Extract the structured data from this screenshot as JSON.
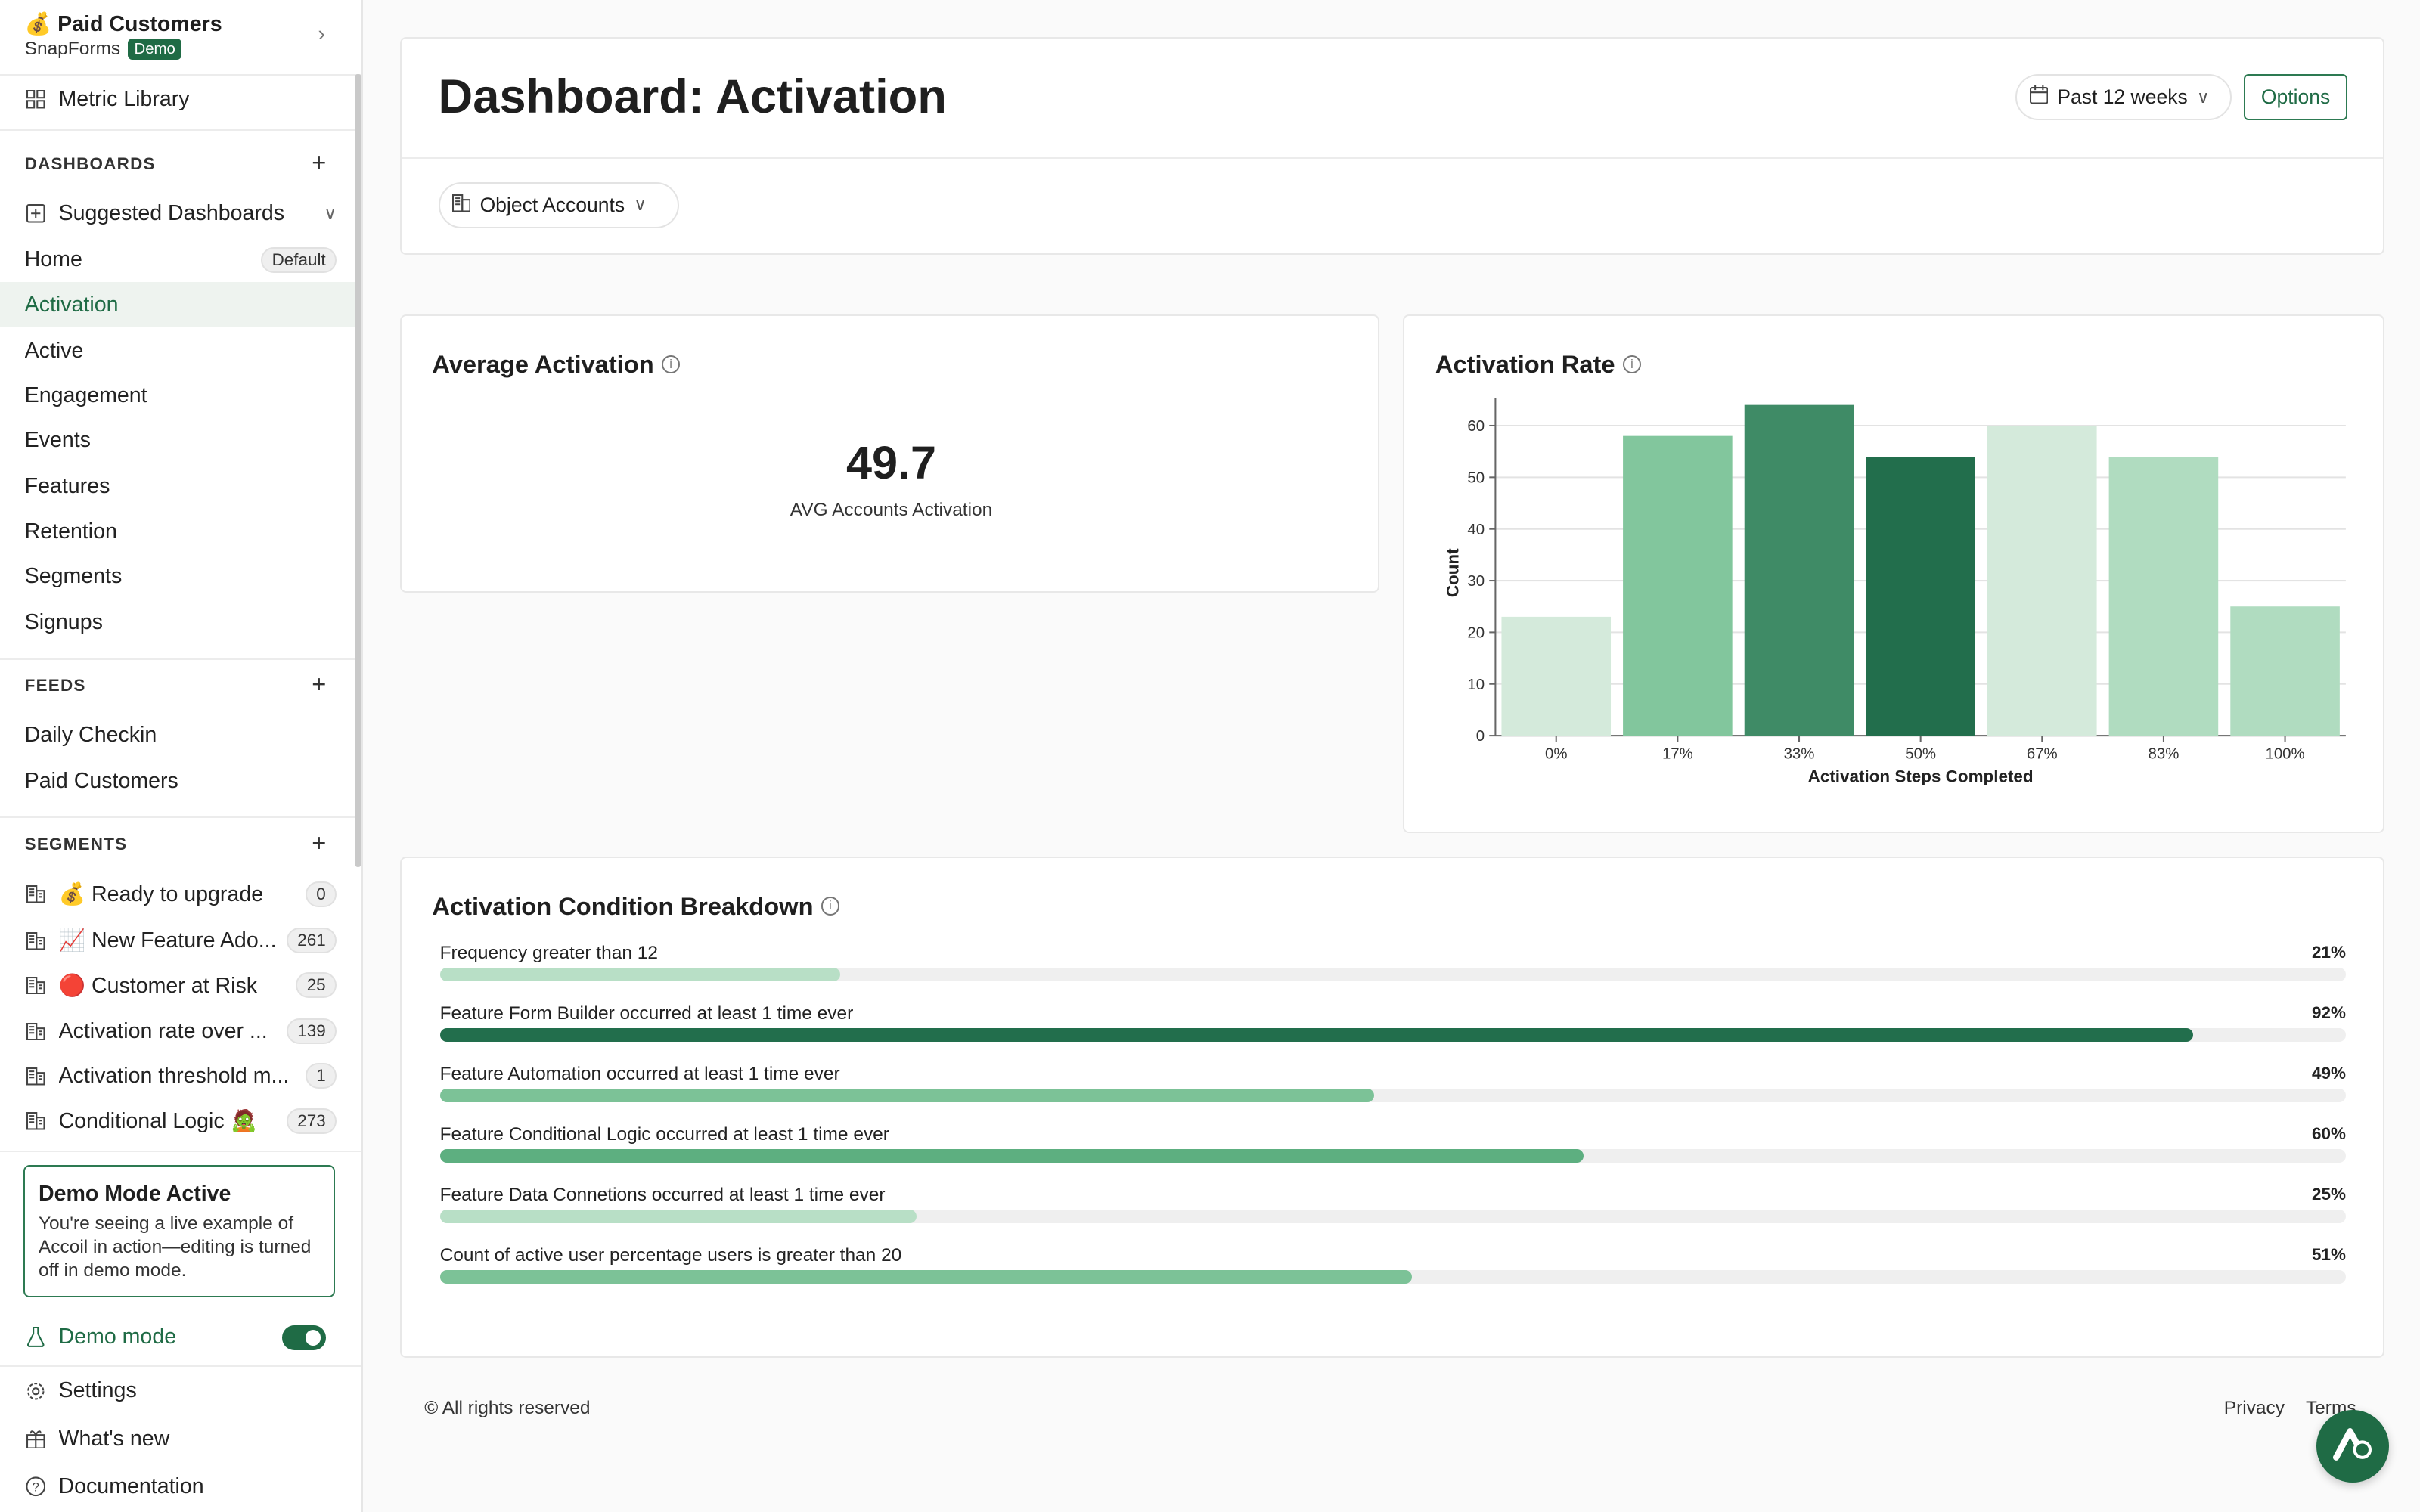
{
  "workspace": {
    "title": "💰 Paid Customers",
    "org": "SnapForms",
    "badge": "Demo"
  },
  "sidebar": {
    "metric_library": "Metric Library",
    "dashboards_header": "DASHBOARDS",
    "suggested": "Suggested Dashboards",
    "dashboards": [
      {
        "label": "Home",
        "pill": "Default"
      },
      {
        "label": "Activation"
      },
      {
        "label": "Active"
      },
      {
        "label": "Engagement"
      },
      {
        "label": "Events"
      },
      {
        "label": "Features"
      },
      {
        "label": "Retention"
      },
      {
        "label": "Segments"
      },
      {
        "label": "Signups"
      }
    ],
    "feeds_header": "FEEDS",
    "feeds": [
      "Daily Checkin",
      "Paid Customers"
    ],
    "segments_header": "SEGMENTS",
    "segments": [
      {
        "label": "💰 Ready to upgrade",
        "count": "0"
      },
      {
        "label": "📈 New Feature Ado...",
        "count": "261"
      },
      {
        "label": "🔴 Customer at Risk",
        "count": "25"
      },
      {
        "label": "Activation rate over ...",
        "count": "139"
      },
      {
        "label": "Activation threshold m...",
        "count": "1"
      },
      {
        "label": "Conditional Logic 🧟",
        "count": "273"
      }
    ],
    "demo_box": {
      "title": "Demo Mode Active",
      "text": "You're seeing a live example of Accoil in action—editing is turned off in demo mode."
    },
    "demo_mode": "Demo mode",
    "settings": "Settings",
    "whats_new": "What's new",
    "documentation": "Documentation"
  },
  "header": {
    "title": "Dashboard: Activation",
    "range": "Past 12 weeks",
    "options": "Options",
    "object": "Object Accounts"
  },
  "avg_card": {
    "title": "Average Activation",
    "value": "49.7",
    "label": "AVG Accounts Activation"
  },
  "rate_card": {
    "title": "Activation Rate"
  },
  "chart_data": {
    "type": "bar",
    "categories": [
      "0%",
      "17%",
      "33%",
      "50%",
      "67%",
      "83%",
      "100%"
    ],
    "values": [
      23,
      58,
      64,
      54,
      60,
      54,
      25
    ],
    "colors": [
      "#d4eadb",
      "#82c69d",
      "#3f8b66",
      "#226e4c",
      "#d4eadb",
      "#b0dcc0",
      "#b0dcc0"
    ],
    "xlabel": "Activation Steps Completed",
    "ylabel": "Count",
    "ylim": [
      0,
      63
    ],
    "yticks": [
      0,
      10,
      20,
      30,
      40,
      50,
      60
    ],
    "grid": true
  },
  "breakdown": {
    "title": "Activation Condition Breakdown",
    "items": [
      {
        "label": "Frequency greater than 12",
        "pct": "21%",
        "value": 21,
        "color": "#b8dfc6"
      },
      {
        "label": "Feature Form Builder occurred at least 1 time ever",
        "pct": "92%",
        "value": 92,
        "color": "#226e4c"
      },
      {
        "label": "Feature Automation occurred at least 1 time ever",
        "pct": "49%",
        "value": 49,
        "color": "#7cc297"
      },
      {
        "label": "Feature Conditional Logic occurred at least 1 time ever",
        "pct": "60%",
        "value": 60,
        "color": "#5daf80"
      },
      {
        "label": "Feature Data Connetions occurred at least 1 time ever",
        "pct": "25%",
        "value": 25,
        "color": "#b8dfc6"
      },
      {
        "label": "Count of active user percentage users is greater than 20",
        "pct": "51%",
        "value": 51,
        "color": "#7cc297"
      }
    ]
  },
  "footer": {
    "rights": "© All rights reserved",
    "privacy": "Privacy",
    "terms": "Terms"
  }
}
